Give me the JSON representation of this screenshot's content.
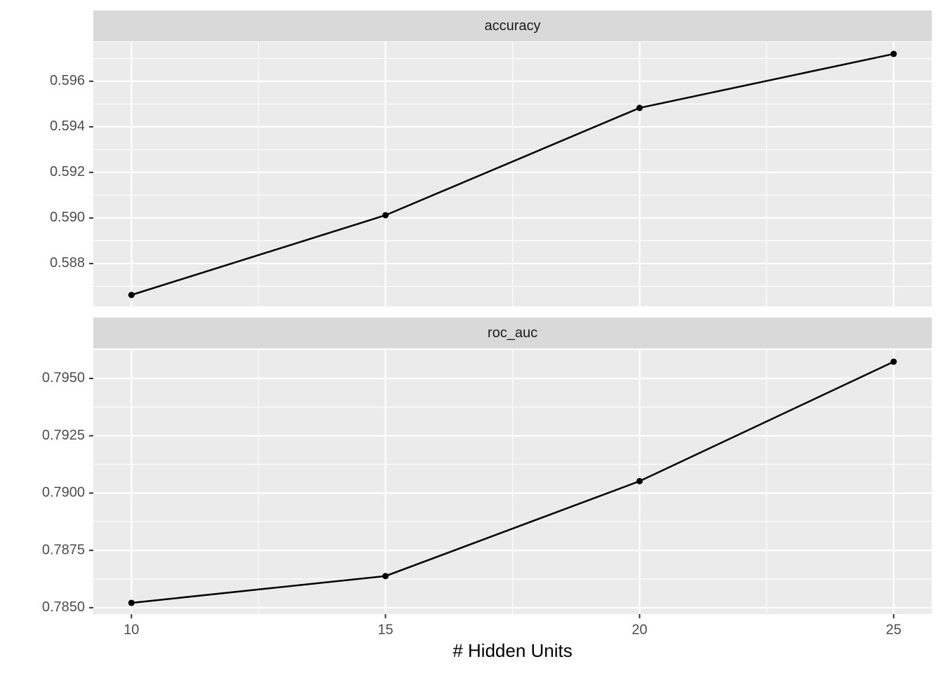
{
  "chart_data": [
    {
      "type": "line",
      "title": "accuracy",
      "x": [
        10,
        15,
        20,
        25
      ],
      "series": [
        {
          "color": "#000000",
          "values": [
            0.58662,
            0.59012,
            0.59483,
            0.5972
          ]
        }
      ],
      "xlim": [
        9.25,
        25.75
      ],
      "xticks": [
        10,
        15,
        20,
        25
      ],
      "ylim": [
        0.58612,
        0.59772
      ],
      "yticks": [
        {
          "value": 0.588,
          "label": "0.588"
        },
        {
          "value": 0.59,
          "label": "0.590"
        },
        0.592,
        0.594,
        0.596
      ],
      "grid": true
    },
    {
      "type": "line",
      "title": "roc_auc",
      "x_label": "# Hidden Units",
      "x": [
        10,
        15,
        20,
        25
      ],
      "series": [
        {
          "color": "#000000",
          "values": [
            0.78521,
            0.78638,
            0.79052,
            0.79573
          ]
        }
      ],
      "xlim": [
        9.25,
        25.75
      ],
      "xticks": [
        10,
        15,
        20,
        25
      ],
      "ylim": [
        0.78472,
        0.79628
      ],
      "yticks": [
        {
          "value": 0.785,
          "label": "0.7850"
        },
        0.7875,
        {
          "value": 0.79,
          "label": "0.7900"
        },
        0.7925,
        {
          "value": 0.795,
          "label": "0.7950"
        }
      ],
      "grid": true
    }
  ]
}
